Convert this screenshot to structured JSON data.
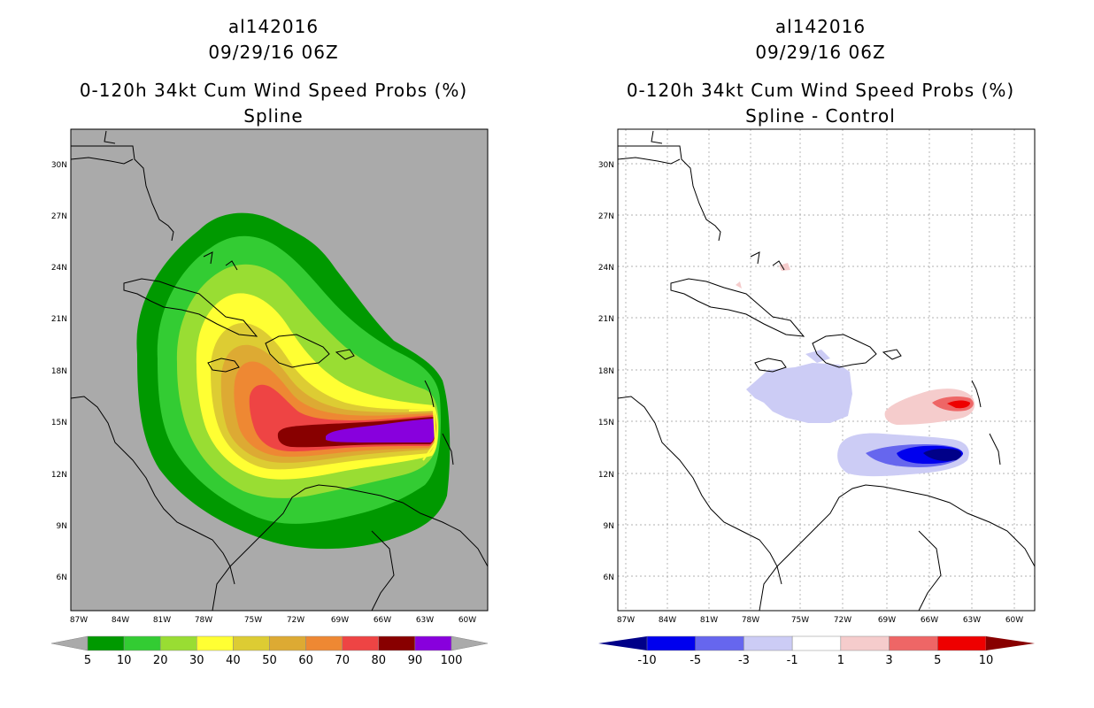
{
  "left": {
    "storm_id": "al142016",
    "datetime": "09/29/16 06Z",
    "product": "0-120h 34kt Cum Wind Speed Probs (%)",
    "method": "Spline",
    "colorbar": {
      "labels": [
        "5",
        "10",
        "20",
        "30",
        "40",
        "50",
        "60",
        "70",
        "80",
        "90",
        "100"
      ],
      "colors": [
        "#009900",
        "#33cc33",
        "#99dd33",
        "#ffff33",
        "#ddcc33",
        "#ddaa33",
        "#ee8833",
        "#ee4444",
        "#880000",
        "#8800dd"
      ]
    }
  },
  "right": {
    "storm_id": "al142016",
    "datetime": "09/29/16 06Z",
    "product": "0-120h 34kt Cum Wind Speed Probs (%)",
    "method": "Spline - Control",
    "colorbar": {
      "labels": [
        "-10",
        "-5",
        "-3",
        "-1",
        "1",
        "3",
        "5",
        "10"
      ],
      "colors": [
        "#0000ee",
        "#6666ee",
        "#ccccf5",
        "#ffffff",
        "#f5cccc",
        "#ee6666",
        "#ee0000"
      ]
    }
  },
  "axes": {
    "lat_labels": [
      "30N",
      "27N",
      "24N",
      "21N",
      "18N",
      "15N",
      "12N",
      "9N",
      "6N"
    ],
    "lon_labels": [
      "87W",
      "84W",
      "81W",
      "78W",
      "75W",
      "72W",
      "69W",
      "66W",
      "63W",
      "60W"
    ]
  },
  "colors": {
    "land_bg": "#aaaaaa",
    "ocean_bg": "#ffffff",
    "coast": "#000000"
  }
}
